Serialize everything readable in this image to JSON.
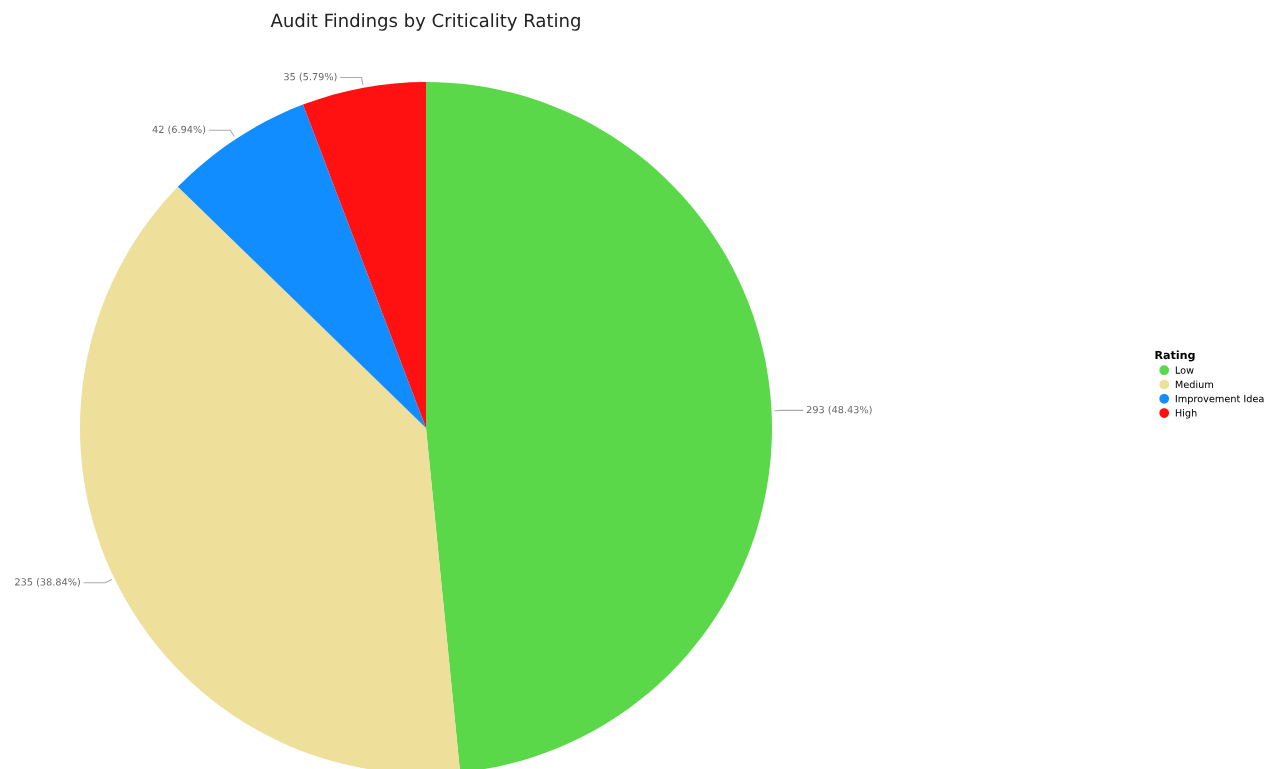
{
  "chart_data": {
    "type": "pie",
    "title": "Audit Findings by Criticality Rating",
    "legend_title": "Rating",
    "categories": [
      "Low",
      "Medium",
      "Improvement Idea",
      "High"
    ],
    "values": [
      293,
      235,
      42,
      35
    ],
    "colors": [
      "#5bd84a",
      "#eedf9b",
      "#118dff",
      "#ff1111"
    ],
    "value_labels": [
      "293 (48.43%)",
      "235 (38.84%)",
      "42 (6.94%)",
      "35 (5.79%)"
    ],
    "legend": "right"
  }
}
